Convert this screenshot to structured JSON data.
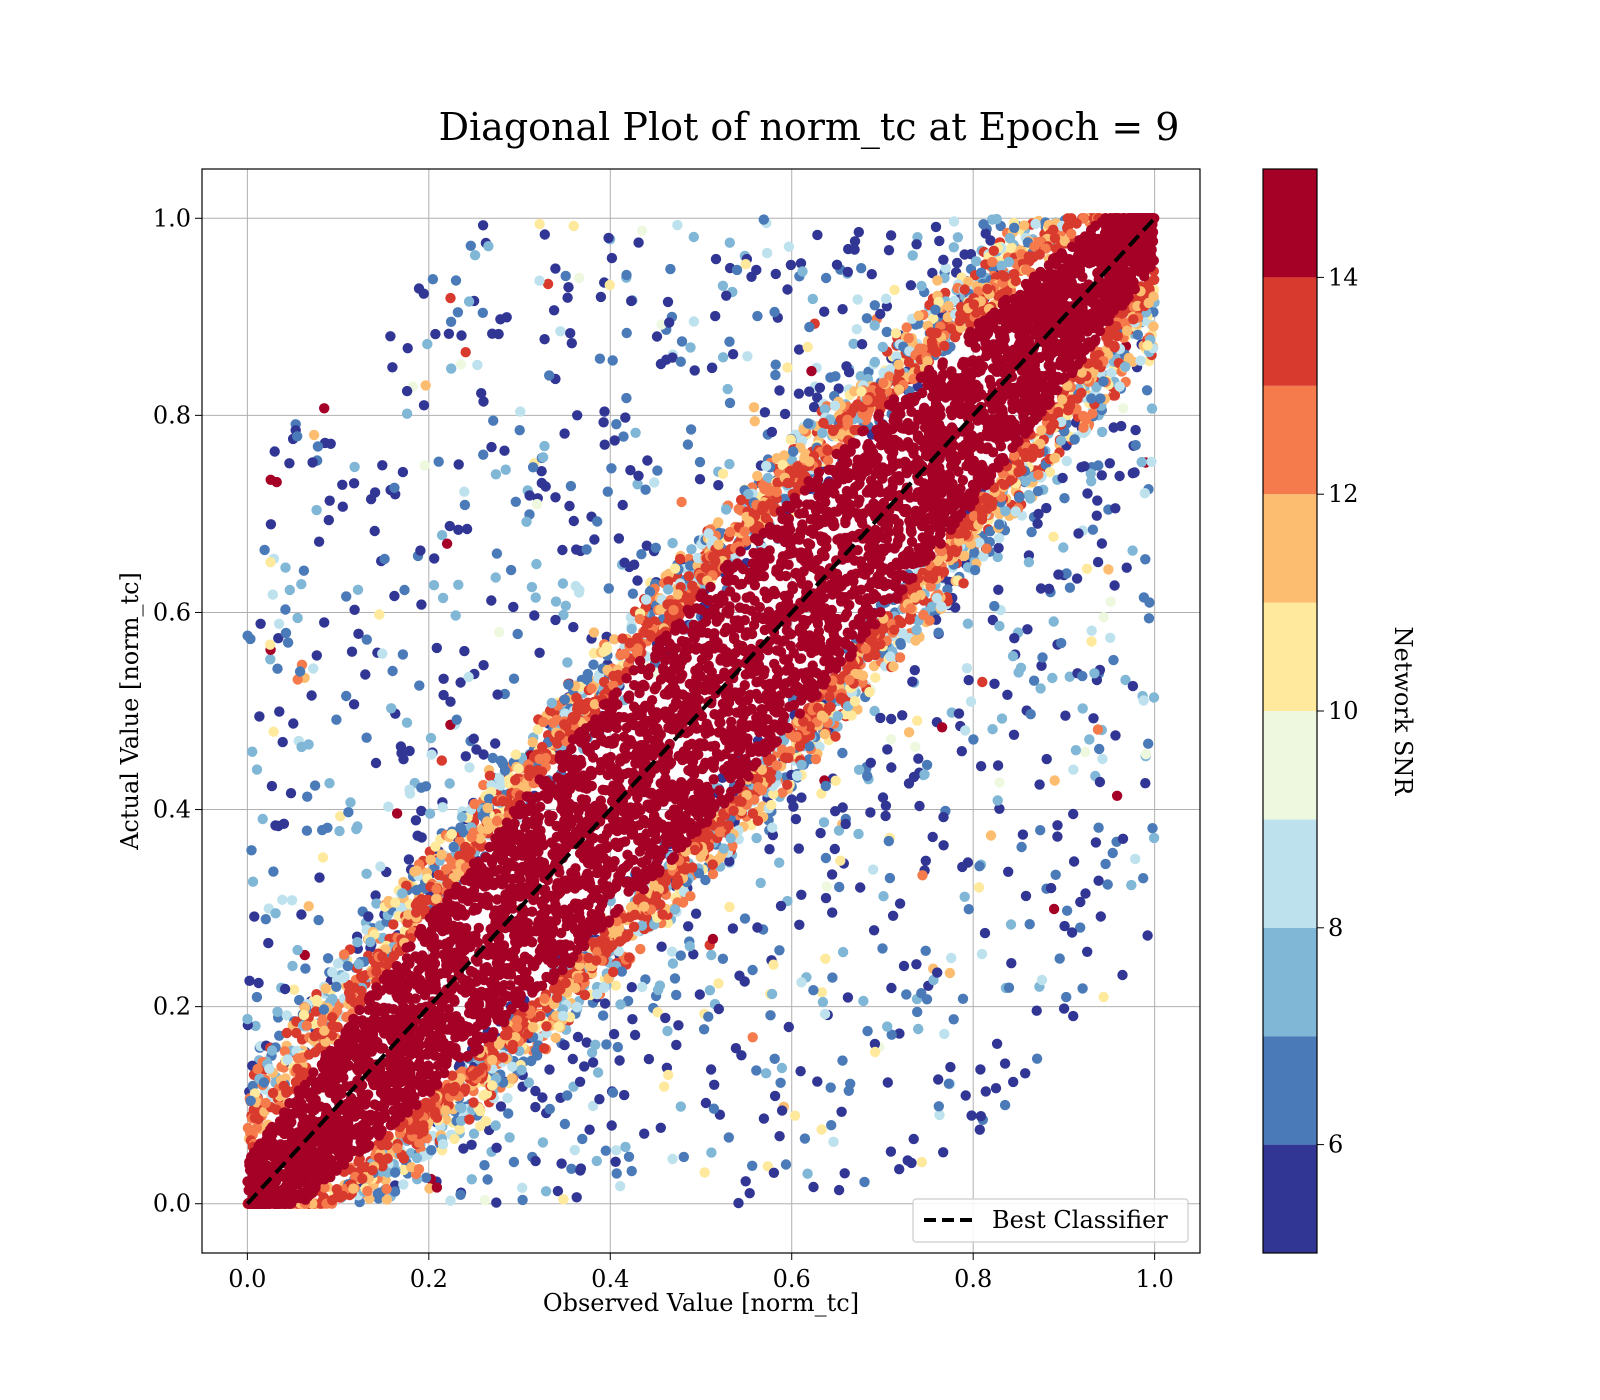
{
  "chart_data": {
    "type": "scatter",
    "title": "Diagonal Plot of norm_tc at Epoch = 9",
    "xlabel": "Observed Value [norm_tc]",
    "ylabel": "Actual Value [norm_tc]",
    "xlim": [
      -0.05,
      1.05
    ],
    "ylim": [
      -0.05,
      1.05
    ],
    "xticks": [
      0.0,
      0.2,
      0.4,
      0.6,
      0.8,
      1.0
    ],
    "yticks": [
      0.0,
      0.2,
      0.4,
      0.6,
      0.8,
      1.0
    ],
    "xtick_labels": [
      "0.0",
      "0.2",
      "0.4",
      "0.6",
      "0.8",
      "1.0"
    ],
    "ytick_labels": [
      "0.0",
      "0.2",
      "0.4",
      "0.6",
      "0.8",
      "1.0"
    ],
    "grid": true,
    "reference_line": {
      "label": "Best Classifier",
      "x": [
        0.0,
        1.0
      ],
      "y": [
        0.0,
        1.0
      ],
      "style": "dashed",
      "color": "#000000"
    },
    "legend": {
      "placement": "lower-right",
      "entries": [
        "Best Classifier"
      ]
    },
    "colorbar": {
      "label": "Network SNR",
      "range": [
        5,
        15
      ],
      "bounds": [
        5,
        6,
        7,
        8,
        9,
        10,
        11,
        12,
        13,
        14,
        15
      ],
      "ticks": [
        6,
        8,
        10,
        12,
        14
      ],
      "tick_labels": [
        "6",
        "8",
        "10",
        "12",
        "14"
      ],
      "colors": [
        "#313695",
        "#4a7ab7",
        "#80b6d6",
        "#bde2ee",
        "#eef8df",
        "#fee99d",
        "#fdbd71",
        "#f57b4d",
        "#d83a2d",
        "#a50026"
      ]
    },
    "series_description": {
      "high_snr_band": {
        "snr_min": 14,
        "half_width_at_x0": 0.05,
        "half_width_at_mid": 0.12
      },
      "low_snr_scatter": {
        "snr_max": 11,
        "x_range": [
          0.0,
          1.0
        ],
        "y_range": [
          0.0,
          1.0
        ]
      }
    }
  }
}
